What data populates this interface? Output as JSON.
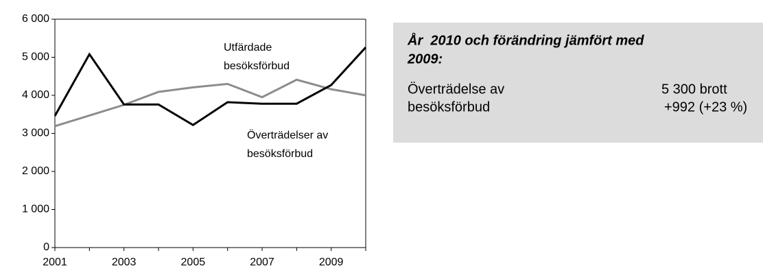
{
  "chart_data": {
    "type": "line",
    "x": [
      2001,
      2002,
      2003,
      2004,
      2005,
      2006,
      2007,
      2008,
      2009,
      2010
    ],
    "series": [
      {
        "name": "Överträdelser av besöksförbud",
        "color": "#000000",
        "values": [
          3460,
          5080,
          3760,
          3760,
          3220,
          3820,
          3780,
          3780,
          4270,
          5260
        ]
      },
      {
        "name": "Utfärdade besöksförbud",
        "color": "#8c8c8c",
        "values": [
          3190,
          3470,
          3750,
          4090,
          4210,
          4300,
          3950,
          4410,
          4160,
          4000
        ]
      }
    ],
    "annotations": [
      {
        "lines": [
          "Utfärdade",
          "besöksförbud"
        ]
      },
      {
        "lines": [
          "Överträdelser av",
          "besöksförbud"
        ]
      }
    ],
    "xlim": [
      2001,
      2010
    ],
    "xticks": [
      2001,
      2003,
      2005,
      2007,
      2009
    ],
    "ylim": [
      0,
      6000
    ],
    "yticks": [
      0,
      {
        "value": 1000,
        "label": "1 000"
      },
      {
        "value": 2000,
        "label": "2 000"
      },
      {
        "value": 3000,
        "label": "3 000"
      },
      {
        "value": 4000,
        "label": "4 000"
      },
      {
        "value": 5000,
        "label": "5 000"
      },
      {
        "value": 6000,
        "label": "6 000"
      }
    ],
    "grid": false
  },
  "info_box": {
    "title_lines": [
      "År  2010 och förändring jämfört med",
      "2009:"
    ],
    "label_lines": [
      "Överträdelse av",
      "besöksförbud"
    ],
    "value_lines": [
      "5 300 brott",
      "+992 (+23 %)"
    ]
  }
}
